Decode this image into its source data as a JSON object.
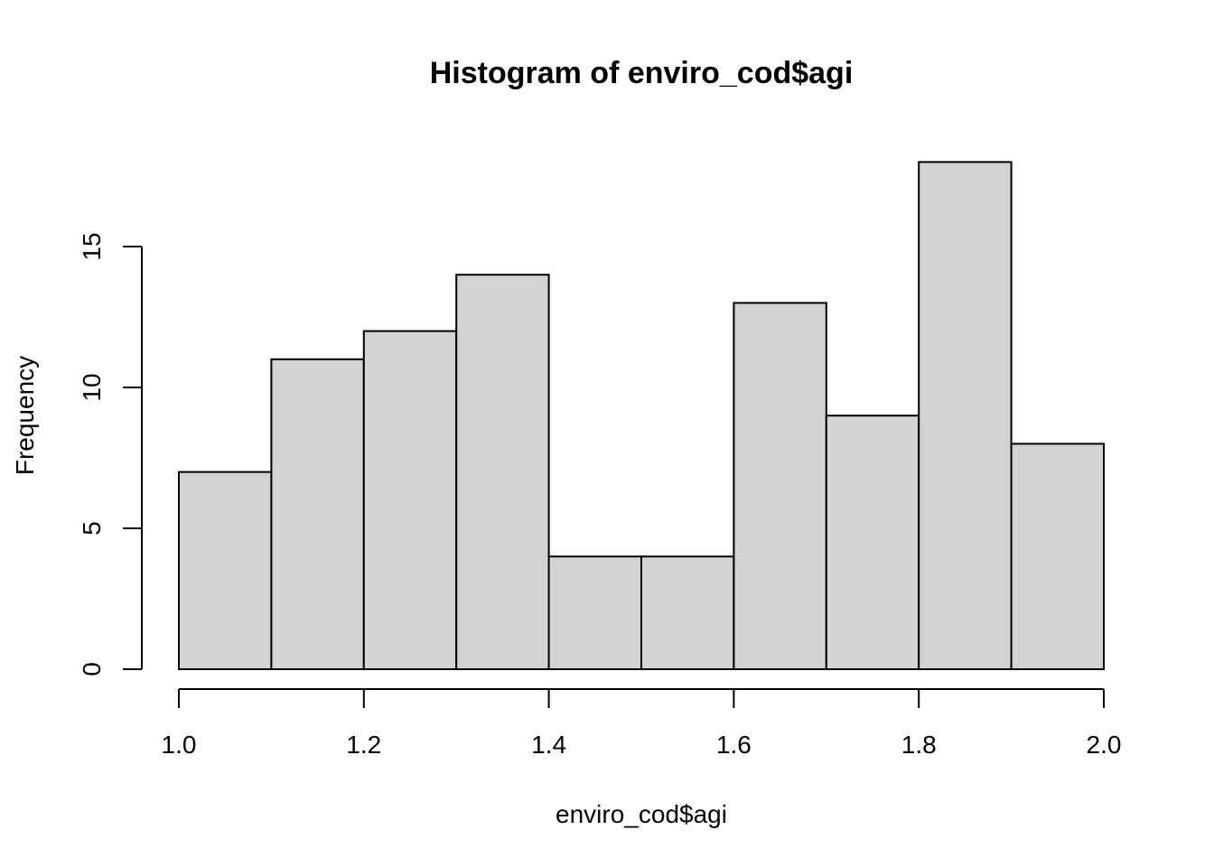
{
  "chart_data": {
    "type": "bar",
    "title": "Histogram of enviro_cod$agi",
    "xlabel": "enviro_cod$agi",
    "ylabel": "Frequency",
    "bins": [
      {
        "start": 1.0,
        "end": 1.1,
        "count": 7
      },
      {
        "start": 1.1,
        "end": 1.2,
        "count": 11
      },
      {
        "start": 1.2,
        "end": 1.3,
        "count": 12
      },
      {
        "start": 1.3,
        "end": 1.4,
        "count": 14
      },
      {
        "start": 1.4,
        "end": 1.5,
        "count": 4
      },
      {
        "start": 1.5,
        "end": 1.6,
        "count": 4
      },
      {
        "start": 1.6,
        "end": 1.7,
        "count": 13
      },
      {
        "start": 1.7,
        "end": 1.8,
        "count": 9
      },
      {
        "start": 1.8,
        "end": 1.9,
        "count": 18
      },
      {
        "start": 1.9,
        "end": 2.0,
        "count": 8
      }
    ],
    "xlim": [
      1.0,
      2.0
    ],
    "ylim": [
      0,
      18
    ],
    "x_ticks": [
      1.0,
      1.2,
      1.4,
      1.6,
      1.8,
      2.0
    ],
    "x_tick_labels": [
      "1.0",
      "1.2",
      "1.4",
      "1.6",
      "1.8",
      "2.0"
    ],
    "y_ticks": [
      0,
      5,
      10,
      15
    ],
    "y_tick_labels": [
      "0",
      "5",
      "10",
      "15"
    ],
    "bar_color": "#d3d3d3",
    "grid": false,
    "legend": "none"
  }
}
